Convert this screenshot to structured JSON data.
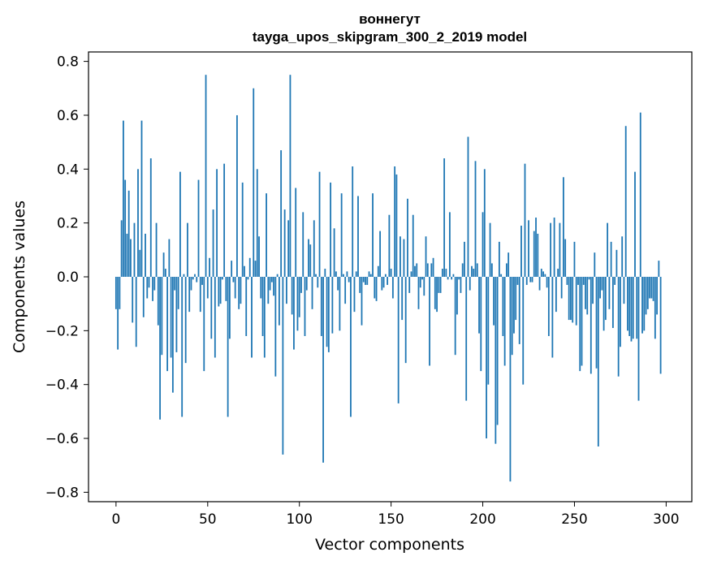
{
  "chart_data": {
    "type": "bar",
    "title": "воннегут",
    "subtitle": "tayga_upos_skipgram_300_2_2019 model",
    "xlabel": "Vector components",
    "ylabel": "Components values",
    "xlim": [
      -15,
      314
    ],
    "ylim": [
      -0.835,
      0.835
    ],
    "xticks": [
      0,
      50,
      100,
      150,
      200,
      250,
      300
    ],
    "yticks": [
      -0.8,
      -0.6,
      -0.4,
      -0.2,
      0.0,
      0.2,
      0.4,
      0.6,
      0.8
    ],
    "ytick_labels": [
      "−0.8",
      "−0.6",
      "−0.4",
      "−0.2",
      "0.0",
      "0.2",
      "0.4",
      "0.6",
      "0.8"
    ],
    "bar_color": "#1f77b4",
    "grid": false,
    "legend": "none",
    "values": [
      -0.12,
      -0.27,
      -0.12,
      0.21,
      0.58,
      0.36,
      0.16,
      0.32,
      0.14,
      -0.17,
      0.2,
      -0.26,
      0.4,
      0.1,
      0.58,
      -0.15,
      0.16,
      -0.08,
      -0.04,
      0.44,
      -0.09,
      -0.05,
      0.2,
      -0.18,
      -0.53,
      -0.29,
      0.09,
      0.03,
      -0.35,
      0.14,
      -0.3,
      -0.43,
      -0.05,
      -0.28,
      -0.12,
      0.39,
      -0.52,
      0.01,
      -0.32,
      0.2,
      -0.13,
      -0.05,
      -0.01,
      0.01,
      -0.02,
      0.36,
      -0.13,
      -0.03,
      -0.35,
      0.75,
      -0.08,
      0.07,
      -0.23,
      0.25,
      -0.3,
      0.4,
      -0.11,
      -0.1,
      -0.01,
      0.42,
      -0.09,
      -0.52,
      -0.23,
      0.06,
      -0.02,
      -0.08,
      0.6,
      -0.12,
      -0.1,
      0.35,
      0.04,
      -0.22,
      -0.01,
      0.07,
      -0.3,
      0.7,
      0.06,
      0.4,
      0.15,
      -0.08,
      -0.22,
      -0.3,
      0.31,
      -0.1,
      -0.05,
      -0.02,
      -0.07,
      -0.37,
      0.01,
      -0.18,
      0.47,
      -0.66,
      0.25,
      -0.1,
      0.21,
      0.75,
      -0.14,
      -0.27,
      0.33,
      -0.2,
      -0.15,
      -0.06,
      0.24,
      -0.22,
      -0.05,
      0.14,
      0.12,
      -0.12,
      0.21,
      0.01,
      -0.04,
      0.39,
      -0.22,
      -0.69,
      0.03,
      -0.26,
      -0.28,
      0.35,
      -0.21,
      0.18,
      0.02,
      -0.05,
      -0.2,
      0.31,
      0.01,
      -0.1,
      0.02,
      -0.02,
      -0.52,
      0.41,
      -0.13,
      0.02,
      0.3,
      -0.06,
      -0.18,
      -0.02,
      -0.03,
      -0.03,
      0.02,
      0.01,
      0.31,
      -0.08,
      -0.09,
      0.04,
      0.17,
      -0.05,
      -0.04,
      0.01,
      -0.03,
      0.23,
      0.03,
      -0.08,
      0.41,
      0.38,
      -0.47,
      0.15,
      -0.16,
      0.14,
      -0.32,
      0.29,
      -0.06,
      0.02,
      0.23,
      0.04,
      0.05,
      -0.12,
      -0.04,
      -0.01,
      -0.07,
      0.15,
      0.05,
      -0.33,
      0.05,
      0.07,
      -0.12,
      -0.13,
      -0.06,
      -0.06,
      0.03,
      0.44,
      0.03,
      -0.01,
      0.24,
      -0.01,
      0.01,
      -0.29,
      -0.14,
      -0.01,
      -0.06,
      0.05,
      0.13,
      -0.46,
      0.52,
      -0.05,
      0.04,
      0.03,
      0.43,
      0.05,
      -0.21,
      -0.35,
      0.24,
      0.4,
      -0.6,
      -0.4,
      0.2,
      0.05,
      -0.18,
      -0.62,
      -0.55,
      0.13,
      0.01,
      -0.22,
      -0.33,
      0.05,
      0.09,
      -0.76,
      -0.29,
      -0.21,
      -0.16,
      -0.03,
      -0.25,
      0.19,
      -0.4,
      0.42,
      -0.03,
      0.21,
      -0.02,
      -0.02,
      0.17,
      0.22,
      0.16,
      -0.05,
      0.03,
      0.02,
      0.01,
      -0.04,
      -0.22,
      0.2,
      -0.3,
      0.22,
      -0.13,
      0.03,
      0.2,
      -0.08,
      0.37,
      0.14,
      -0.03,
      -0.16,
      -0.16,
      -0.17,
      0.13,
      -0.18,
      -0.03,
      -0.35,
      -0.33,
      -0.03,
      -0.12,
      -0.14,
      -0.01,
      -0.36,
      -0.1,
      0.09,
      -0.34,
      -0.63,
      -0.08,
      -0.05,
      -0.2,
      -0.16,
      0.2,
      -0.12,
      0.13,
      -0.19,
      -0.03,
      0.1,
      -0.37,
      -0.26,
      0.15,
      -0.1,
      0.56,
      -0.2,
      -0.22,
      -0.24,
      -0.23,
      0.39,
      -0.23,
      -0.46,
      0.61,
      -0.21,
      -0.2,
      -0.14,
      -0.12,
      -0.08,
      -0.08,
      -0.09,
      -0.23,
      -0.14,
      0.06,
      -0.36
    ]
  }
}
